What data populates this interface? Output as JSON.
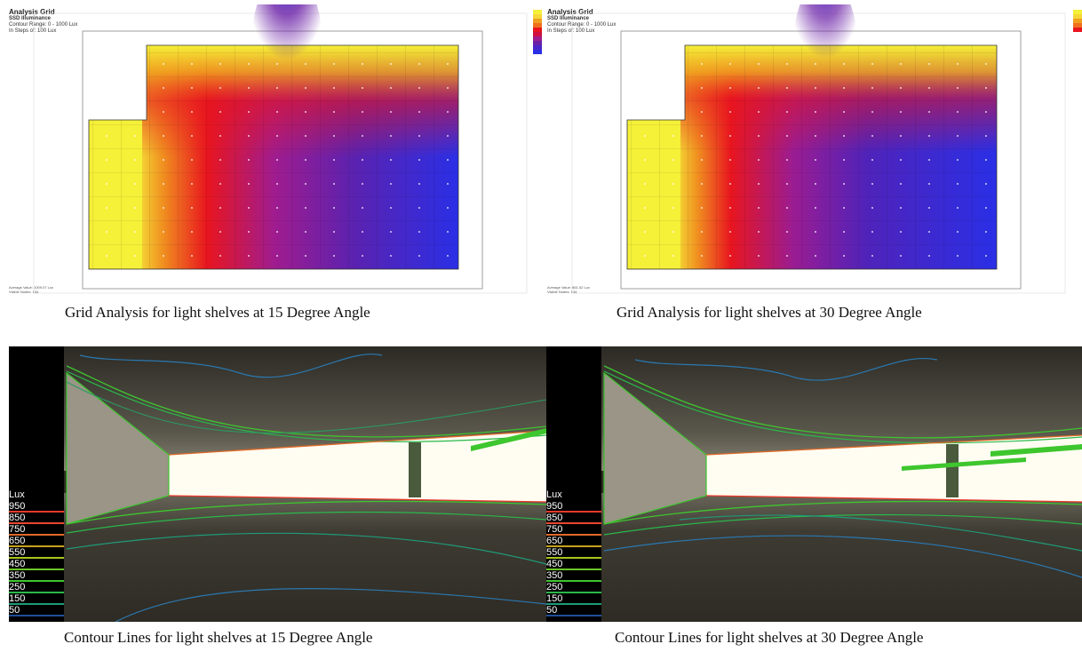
{
  "panels": [
    {
      "grid_title": "Analysis Grid",
      "grid_subtitle": "SSD Illuminance",
      "grid_line1": "Contour Range: 0 - 1000 Lux",
      "grid_line2": "In Steps of: 100 Lux",
      "grid_foot1": "Average Value: 1009.07 Lux",
      "grid_foot2": "Visible Nodes: 134",
      "grid_caption": "Grid Analysis for light shelves at 15 Degree Angle",
      "contour_caption": "Contour Lines for light shelves at 15 Degree Angle"
    },
    {
      "grid_title": "Analysis Grid",
      "grid_subtitle": "SSD Illuminance",
      "grid_line1": "Contour Range: 0 - 1000 Lux",
      "grid_line2": "In Steps of: 100 Lux",
      "grid_foot1": "Average Value: 861.52 Lux",
      "grid_foot2": "Visible Nodes: 134",
      "grid_caption": "Grid Analysis for light shelves at 30 Degree Angle",
      "contour_caption": "Contour Lines for light shelves at 30 Degree Angle"
    }
  ],
  "lux_legend": {
    "title": "Lux",
    "levels": [
      {
        "value": "950",
        "color": "#e83a2a"
      },
      {
        "value": "850",
        "color": "#e8472c"
      },
      {
        "value": "750",
        "color": "#e06a28"
      },
      {
        "value": "650",
        "color": "#c7a21e"
      },
      {
        "value": "550",
        "color": "#a8c41e"
      },
      {
        "value": "450",
        "color": "#6cc626"
      },
      {
        "value": "350",
        "color": "#3ec62e"
      },
      {
        "value": "250",
        "color": "#2ab84a"
      },
      {
        "value": "150",
        "color": "#1f9a78"
      },
      {
        "value": "50",
        "color": "#1f4f9a"
      }
    ]
  },
  "colors": {
    "yellow": "#f5f038",
    "orange": "#f08a1e",
    "red": "#e8151f",
    "magenta": "#b01a86",
    "purple": "#6a1fa6",
    "blue": "#2a2fe6"
  }
}
